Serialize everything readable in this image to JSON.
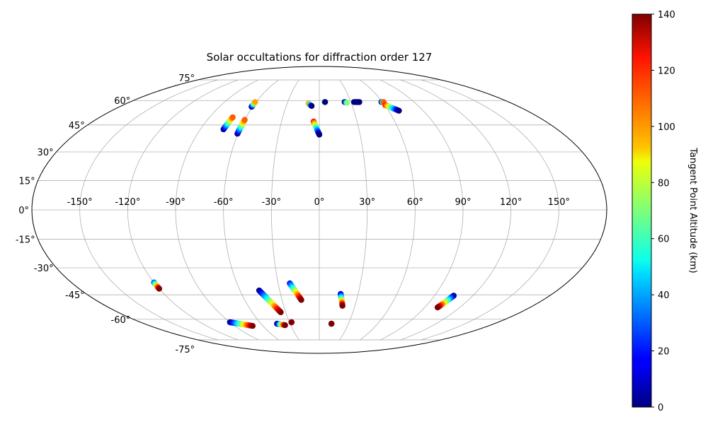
{
  "chart_data": {
    "type": "scatter",
    "projection": "mollweide",
    "title": "Solar occultations for diffraction order 127",
    "grid": true,
    "x_ticks": [
      "-150°",
      "-120°",
      "-90°",
      "-60°",
      "-30°",
      "0°",
      "30°",
      "60°",
      "90°",
      "120°",
      "150°"
    ],
    "x_tick_values": [
      -150,
      -120,
      -90,
      -60,
      -30,
      0,
      30,
      60,
      90,
      120,
      150
    ],
    "y_ticks": [
      "-75°",
      "-60°",
      "-45°",
      "-30°",
      "-15°",
      "0°",
      "15°",
      "30°",
      "45°",
      "60°",
      "75°"
    ],
    "y_tick_values": [
      -75,
      -60,
      -45,
      -30,
      -15,
      0,
      15,
      30,
      45,
      60,
      75
    ],
    "colorbar": {
      "label": "Tangent Point Altitude (km)",
      "colormap": "jet",
      "range": [
        0,
        140
      ],
      "ticks": [
        "0",
        "20",
        "40",
        "60",
        "80",
        "100",
        "120",
        "140"
      ],
      "tick_values": [
        0,
        20,
        40,
        60,
        80,
        100,
        120,
        140
      ]
    },
    "tracks": [
      {
        "lon_start": -72.5,
        "lat_start": 42.5,
        "lon_end": -71.0,
        "lat_end": 49.5,
        "alt_start": 0,
        "alt_end": 110
      },
      {
        "lon_start": -60.5,
        "lat_start": 40.0,
        "lon_end": -60.0,
        "lat_end": 48.0,
        "alt_start": 0,
        "alt_end": 110
      },
      {
        "lon_start": -61.0,
        "lat_start": 56.0,
        "lon_end": -61.0,
        "lat_end": 59.0,
        "alt_start": 0,
        "alt_end": 100
      },
      {
        "lon_start": -10.0,
        "lat_start": 58.0,
        "lon_end": -7.0,
        "lat_end": 56.5,
        "alt_start": 100,
        "alt_end": 0
      },
      {
        "lon_start": -4.5,
        "lat_start": 47.0,
        "lon_end": 0.0,
        "lat_end": 39.5,
        "alt_start": 120,
        "alt_end": 0
      },
      {
        "lon_start": 5.0,
        "lat_start": 59.0,
        "lon_end": 5.5,
        "lat_end": 59.0,
        "alt_start": 100,
        "alt_end": 0
      },
      {
        "lon_start": 24.0,
        "lat_start": 59.0,
        "lon_end": 26.0,
        "lat_end": 58.5,
        "alt_start": 0,
        "alt_end": 70
      },
      {
        "lon_start": 33.0,
        "lat_start": 59.0,
        "lon_end": 38.0,
        "lat_end": 59.0,
        "alt_start": 0,
        "alt_end": 0
      },
      {
        "lon_start": 59.0,
        "lat_start": 59.0,
        "lon_end": 61.0,
        "lat_end": 59.0,
        "alt_start": 0,
        "alt_end": 110
      },
      {
        "lon_start": 60.5,
        "lat_start": 57.0,
        "lon_end": 69.0,
        "lat_end": 53.5,
        "alt_start": 120,
        "alt_end": 0
      },
      {
        "lon_start": -120.0,
        "lat_start": -38.0,
        "lon_end": -120.0,
        "lat_end": -41.5,
        "alt_start": 30,
        "alt_end": 140
      },
      {
        "lon_start": -90.0,
        "lat_start": -62.0,
        "lon_end": -71.0,
        "lat_end": -64.5,
        "alt_start": 0,
        "alt_end": 140
      },
      {
        "lon_start": -45.5,
        "lat_start": -42.5,
        "lon_end": -34.5,
        "lat_end": -55.5,
        "alt_start": 0,
        "alt_end": 140
      },
      {
        "lon_start": -43.5,
        "lat_start": -63.0,
        "lon_end": -36.0,
        "lat_end": -64.0,
        "alt_start": 0,
        "alt_end": 140
      },
      {
        "lon_start": -28.0,
        "lat_start": -62.0,
        "lon_end": -28.0,
        "lat_end": -62.0,
        "alt_start": 140,
        "alt_end": 140
      },
      {
        "lon_start": -21.5,
        "lat_start": -38.5,
        "lon_end": -14.5,
        "lat_end": -48.0,
        "alt_start": 20,
        "alt_end": 140
      },
      {
        "lon_start": 16.5,
        "lat_start": -44.5,
        "lon_end": 19.5,
        "lat_end": -51.5,
        "alt_start": 10,
        "alt_end": 140
      },
      {
        "lon_start": 12.5,
        "lat_start": -63.0,
        "lon_end": 12.5,
        "lat_end": -63.0,
        "alt_start": 140,
        "alt_end": 140
      },
      {
        "lon_start": 105.0,
        "lat_start": -45.5,
        "lon_end": 101.0,
        "lat_end": -52.5,
        "alt_start": 0,
        "alt_end": 140
      }
    ]
  }
}
